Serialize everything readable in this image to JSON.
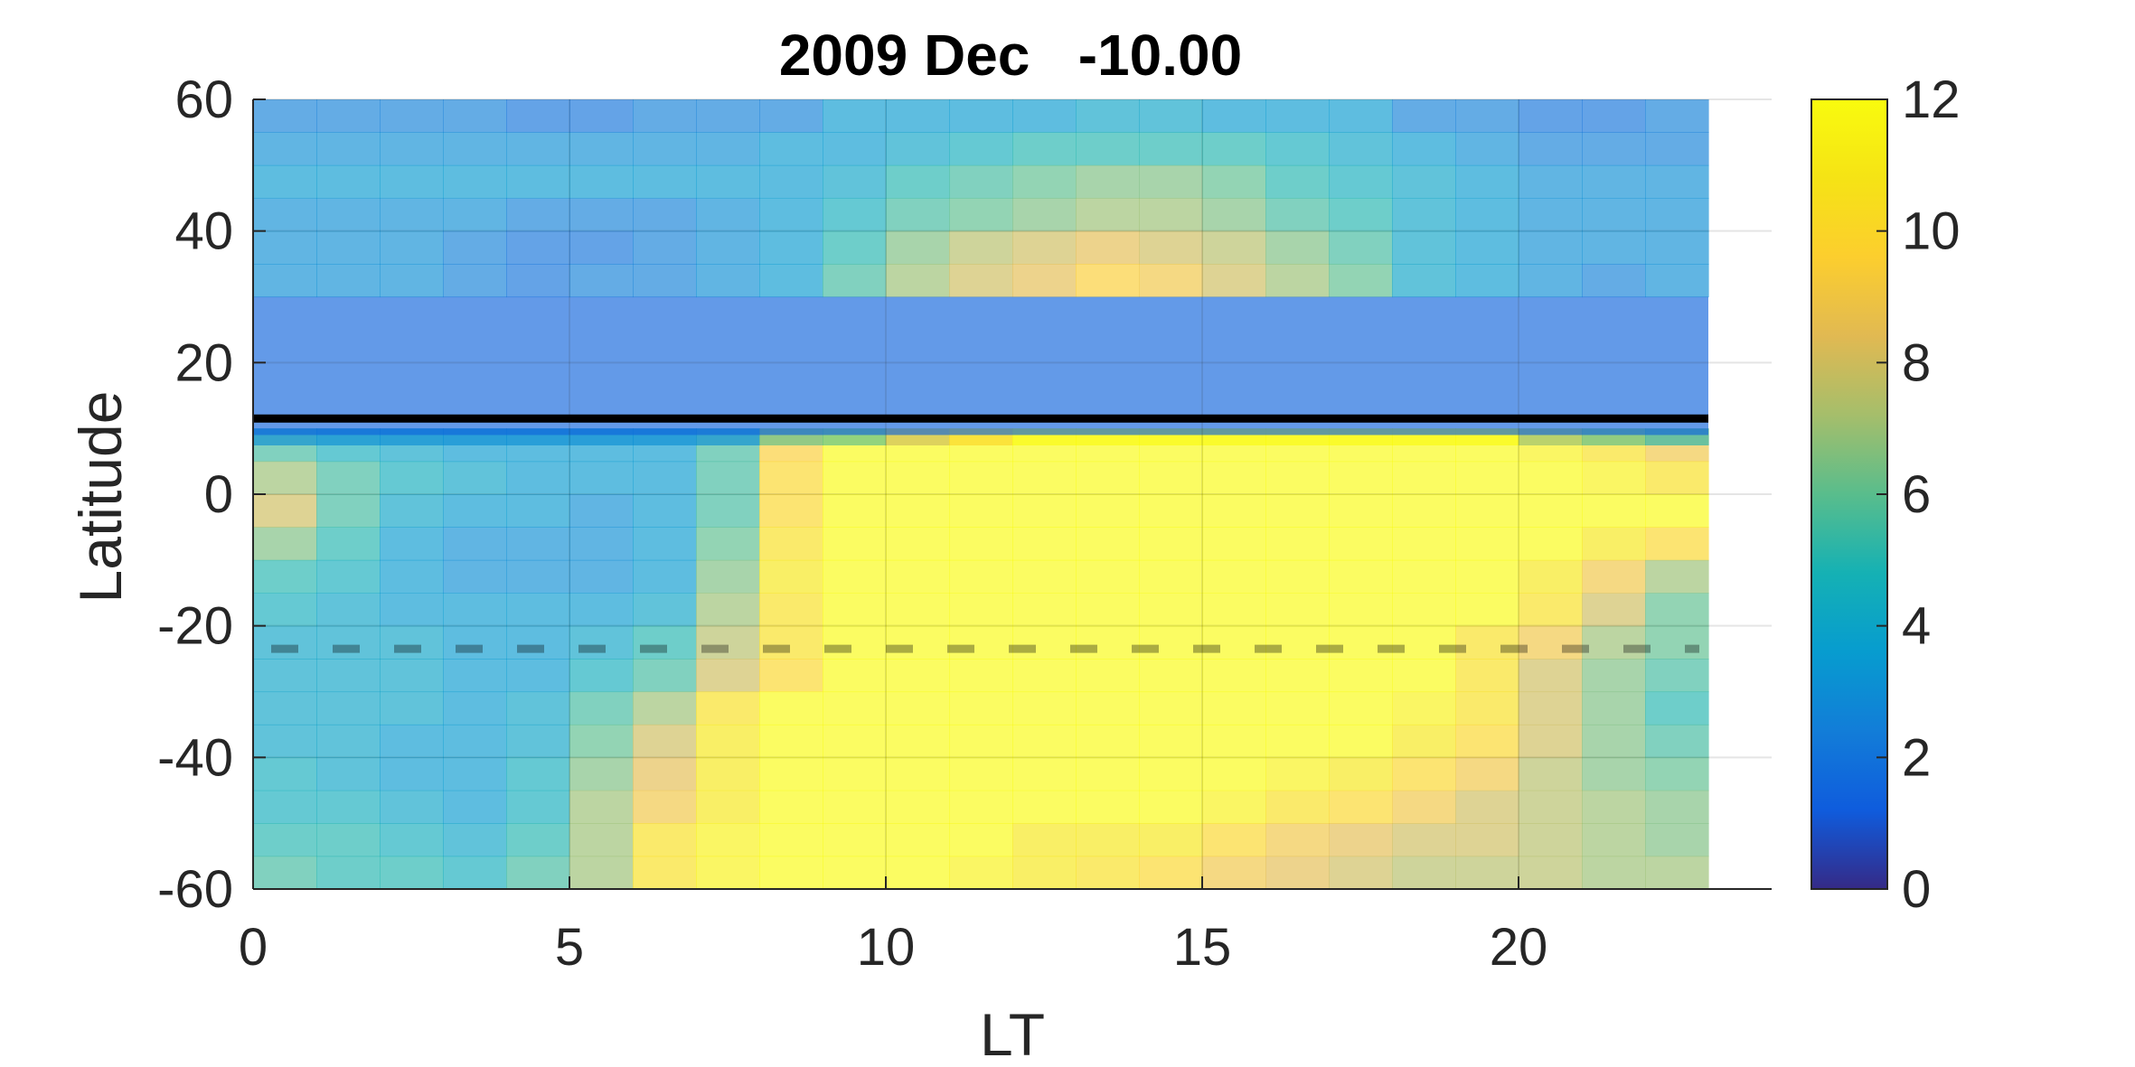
{
  "chart_data": {
    "type": "heatmap",
    "title": "2009 Dec   -10.00",
    "xlabel": "LT",
    "ylabel": "Latitude",
    "xlim": [
      0,
      24
    ],
    "ylim": [
      -60,
      60
    ],
    "x_ticks": [
      "0",
      "5",
      "10",
      "15",
      "20"
    ],
    "x_tick_values": [
      0,
      5,
      10,
      15,
      20
    ],
    "y_ticks": [
      "60",
      "40",
      "20",
      "0",
      "-20",
      "-40",
      "-60"
    ],
    "y_tick_values": [
      60,
      40,
      20,
      0,
      -20,
      -40,
      -60
    ],
    "colorbar_ticks": [
      "12",
      "10",
      "8",
      "6",
      "4",
      "2",
      "0"
    ],
    "colorbar_tick_values": [
      12,
      10,
      8,
      6,
      4,
      2,
      0
    ],
    "colorbar_range": [
      0,
      12
    ],
    "colormap": "parula",
    "grid": true,
    "lt_columns": [
      0,
      1,
      2,
      3,
      4,
      5,
      6,
      7,
      8,
      9,
      10,
      11,
      12,
      13,
      14,
      15,
      16,
      17,
      18,
      19,
      20,
      21,
      22
    ],
    "northern_band": {
      "lat_rows": [
        57.5,
        52.5,
        47.5,
        42.5,
        37.5,
        32.5
      ],
      "values": [
        [
          2.5,
          2.5,
          2.5,
          2.5,
          2.0,
          2.0,
          2.5,
          2.5,
          2.5,
          3.5,
          3.5,
          3.5,
          3.5,
          4.0,
          4.0,
          3.5,
          3.5,
          3.5,
          2.5,
          2.5,
          2.0,
          2.0,
          2.5
        ],
        [
          3.0,
          3.0,
          3.0,
          3.0,
          3.0,
          3.0,
          3.0,
          3.0,
          3.5,
          3.5,
          4.0,
          4.5,
          5.0,
          5.0,
          5.0,
          5.0,
          4.5,
          4.0,
          3.5,
          3.0,
          2.5,
          2.5,
          2.5
        ],
        [
          3.5,
          3.5,
          3.5,
          3.5,
          3.5,
          3.5,
          3.5,
          3.5,
          3.5,
          4.0,
          5.0,
          5.5,
          6.0,
          6.5,
          6.5,
          6.0,
          5.0,
          4.5,
          4.0,
          3.5,
          3.0,
          3.0,
          3.0
        ],
        [
          3.0,
          3.0,
          3.0,
          3.0,
          2.5,
          2.5,
          2.5,
          3.0,
          3.5,
          4.5,
          5.5,
          6.0,
          6.5,
          7.0,
          7.0,
          6.5,
          5.5,
          5.0,
          4.0,
          3.5,
          3.0,
          3.0,
          3.0
        ],
        [
          3.0,
          3.0,
          3.0,
          2.5,
          2.0,
          2.0,
          2.5,
          3.0,
          3.5,
          5.0,
          6.5,
          7.5,
          8.0,
          8.5,
          8.0,
          7.5,
          6.5,
          5.5,
          4.0,
          3.5,
          3.0,
          3.0,
          3.0
        ],
        [
          3.0,
          3.0,
          3.0,
          2.5,
          2.0,
          2.5,
          2.5,
          3.0,
          3.5,
          5.5,
          7.0,
          8.0,
          8.5,
          9.5,
          9.0,
          8.0,
          7.0,
          6.0,
          4.0,
          3.5,
          3.0,
          2.5,
          3.0
        ]
      ]
    },
    "masked_band": {
      "lat_min": 12,
      "lat_max": 28,
      "value": 1.5
    },
    "solid_line_lat": 11.5,
    "dashed_line_lat": -23.5,
    "southern_band": {
      "lat_rows": [
        7.5,
        2.5,
        -2.5,
        -7.5,
        -12.5,
        -17.5,
        -22.5,
        -27.5,
        -32.5,
        -37.5,
        -42.5,
        -47.5,
        -52.5,
        -57.5
      ],
      "values": [
        [
          5.5,
          4.5,
          4.0,
          3.5,
          3.5,
          3.5,
          3.5,
          5.5,
          9.5,
          12,
          12,
          12,
          12,
          12,
          12,
          12,
          12,
          12,
          12,
          12,
          11.5,
          10.5,
          9.0
        ],
        [
          7.0,
          5.5,
          4.5,
          4.0,
          3.5,
          3.5,
          3.5,
          5.5,
          10.0,
          12,
          12,
          12,
          12,
          12,
          12,
          12,
          12,
          12,
          12,
          12,
          12,
          11.5,
          10.5
        ],
        [
          8.0,
          5.5,
          4.0,
          3.5,
          3.5,
          3.0,
          3.5,
          5.5,
          10.0,
          12,
          12,
          12,
          12,
          12,
          12,
          12,
          12,
          12,
          12,
          12,
          12,
          12,
          12
        ],
        [
          6.5,
          5.0,
          3.5,
          3.0,
          3.0,
          3.0,
          3.5,
          6.0,
          10.5,
          12,
          12,
          12,
          12,
          12,
          12,
          12,
          12,
          12,
          12,
          12,
          12,
          11.0,
          10.0
        ],
        [
          5.0,
          4.5,
          3.5,
          3.0,
          3.0,
          3.0,
          3.5,
          6.5,
          11.0,
          12,
          12,
          12,
          12,
          12,
          12,
          12,
          12,
          12,
          12,
          12,
          11.0,
          9.0,
          7.0
        ],
        [
          4.5,
          4.0,
          3.5,
          3.5,
          3.5,
          3.5,
          4.0,
          7.0,
          10.5,
          12,
          12,
          12,
          12,
          12,
          12,
          12,
          12,
          12,
          12,
          12,
          10.5,
          8.0,
          6.0
        ],
        [
          4.0,
          4.0,
          4.0,
          3.5,
          3.5,
          4.0,
          5.0,
          7.5,
          10.5,
          12,
          12,
          12,
          12,
          12,
          12,
          12,
          12,
          12,
          12,
          10.5,
          9.0,
          7.0,
          6.0
        ],
        [
          4.0,
          4.0,
          4.0,
          3.5,
          3.5,
          4.5,
          5.5,
          8.0,
          10.0,
          12,
          12,
          12,
          12,
          12,
          12,
          12,
          12,
          12,
          12,
          10.5,
          8.0,
          6.5,
          5.5
        ],
        [
          4.0,
          4.0,
          4.0,
          3.5,
          4.0,
          5.5,
          7.0,
          10.5,
          12,
          12,
          12,
          12,
          12,
          12,
          12,
          12,
          12,
          12,
          11.5,
          10.5,
          8.0,
          6.5,
          5.0
        ],
        [
          4.0,
          4.0,
          3.5,
          3.5,
          4.0,
          6.0,
          8.0,
          11.0,
          12,
          12,
          12,
          12,
          12,
          12,
          12,
          12,
          12,
          12,
          11.0,
          10.0,
          8.0,
          6.5,
          5.5
        ],
        [
          4.5,
          4.0,
          3.5,
          3.5,
          4.5,
          6.5,
          8.5,
          11.0,
          12,
          12,
          12,
          12,
          12,
          12,
          12,
          12,
          11.5,
          11.0,
          10.0,
          9.0,
          7.5,
          6.5,
          6.0
        ],
        [
          4.5,
          4.5,
          4.0,
          3.5,
          4.5,
          7.0,
          9.0,
          11.0,
          12,
          12,
          12,
          12,
          12,
          12,
          12,
          11.5,
          10.5,
          10.0,
          9.0,
          8.0,
          7.5,
          7.0,
          6.5
        ],
        [
          5.0,
          5.0,
          4.5,
          4.0,
          5.0,
          7.0,
          10.5,
          11.5,
          12,
          12,
          12,
          12,
          11.0,
          11.0,
          11.0,
          10.0,
          9.0,
          8.5,
          8.0,
          8.0,
          7.5,
          7.0,
          6.5
        ],
        [
          5.5,
          5.0,
          5.0,
          4.5,
          5.5,
          7.0,
          10.5,
          11.5,
          12,
          12,
          12,
          11.5,
          11.0,
          10.5,
          10.0,
          9.0,
          8.5,
          8.0,
          7.5,
          7.5,
          7.5,
          7.0,
          7.0
        ]
      ]
    },
    "patch_row": {
      "lat": 10,
      "values": [
        3,
        3,
        3,
        3,
        3,
        3,
        3,
        3,
        6,
        6,
        8,
        10,
        12,
        12,
        12,
        12,
        12,
        12,
        12,
        12,
        7,
        6,
        5
      ]
    }
  }
}
